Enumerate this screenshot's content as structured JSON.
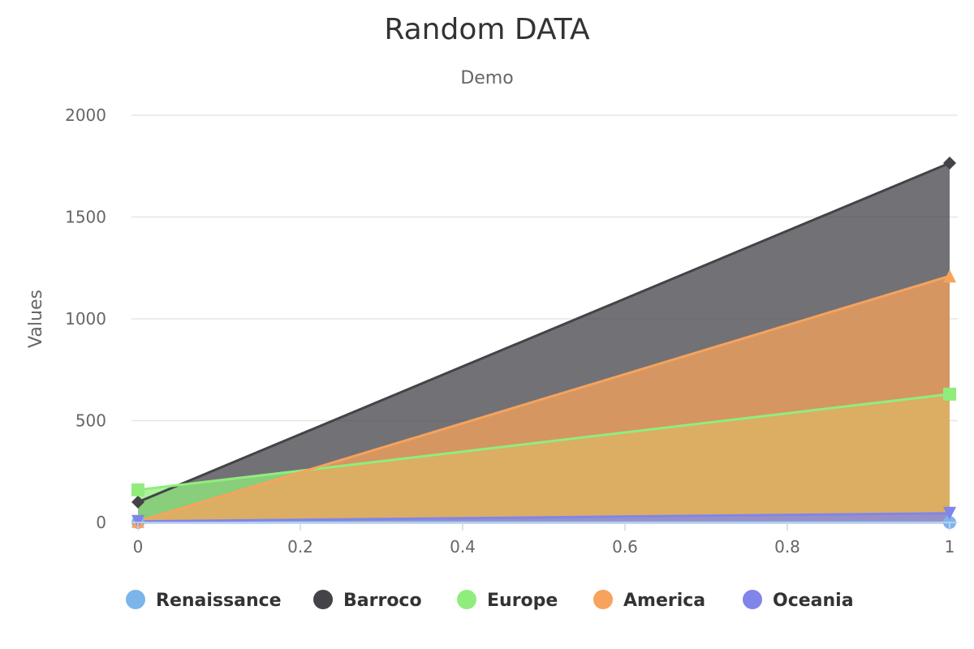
{
  "chart_data": {
    "type": "area",
    "title": "Random DATA",
    "subtitle": "Demo",
    "xlabel": "",
    "ylabel": "Values",
    "xlim": [
      0,
      1
    ],
    "ylim": [
      0,
      2000
    ],
    "x_ticks": [
      "0",
      "0.2",
      "0.4",
      "0.6",
      "0.8",
      "1"
    ],
    "y_ticks": [
      "0",
      "500",
      "1000",
      "1500",
      "2000"
    ],
    "grid": true,
    "legend_position": "bottom",
    "x": [
      0,
      1
    ],
    "series": [
      {
        "name": "Renaissance",
        "values": [
          0,
          0
        ],
        "color": "#7cb5ec",
        "marker": "circle"
      },
      {
        "name": "Barroco",
        "values": [
          100,
          1765
        ],
        "color": "#434348",
        "marker": "diamond"
      },
      {
        "name": "Europe",
        "values": [
          160,
          630
        ],
        "color": "#90ed7d",
        "marker": "square"
      },
      {
        "name": "America",
        "values": [
          5,
          1210
        ],
        "color": "#f7a35c",
        "marker": "triangle"
      },
      {
        "name": "Oceania",
        "values": [
          5,
          45
        ],
        "color": "#8085e9",
        "marker": "triangle-down"
      }
    ]
  }
}
